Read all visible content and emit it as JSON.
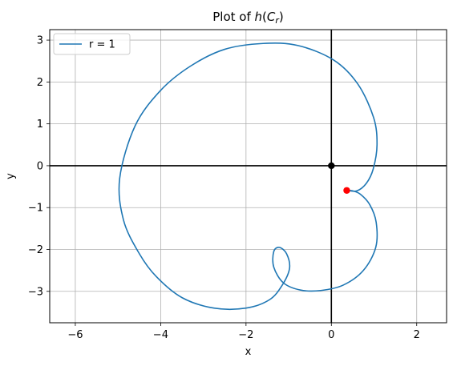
{
  "chart_data": {
    "type": "line",
    "title": "Plot of h(C_r)",
    "title_parts": {
      "prefix": "Plot of ",
      "h": "h",
      "open": "(",
      "C": "C",
      "sub": "r",
      "close": ")"
    },
    "xlabel": "x",
    "ylabel": "y",
    "xlim": [
      -6.6,
      2.7
    ],
    "ylim": [
      -3.75,
      3.25
    ],
    "xticks": [
      -6,
      -4,
      -2,
      0,
      2
    ],
    "yticks": [
      -3,
      -2,
      -1,
      0,
      1,
      2,
      3
    ],
    "xtick_labels": [
      "−6",
      "−4",
      "−2",
      "0",
      "2"
    ],
    "ytick_labels": [
      "−3",
      "−2",
      "−1",
      "0",
      "1",
      "2",
      "3"
    ],
    "grid": true,
    "legend": {
      "placement": "upper-left",
      "entries": [
        "r = 1"
      ]
    },
    "series": [
      {
        "name": "r = 1",
        "color": "#1f77b4",
        "points": [
          [
            0.36,
            -0.59
          ],
          [
            0.6,
            -0.6
          ],
          [
            0.82,
            -0.42
          ],
          [
            0.98,
            -0.08
          ],
          [
            1.07,
            0.5
          ],
          [
            0.99,
            1.15
          ],
          [
            0.62,
            1.95
          ],
          [
            0.06,
            2.52
          ],
          [
            -0.78,
            2.87
          ],
          [
            -1.6,
            2.92
          ],
          [
            -2.5,
            2.78
          ],
          [
            -3.3,
            2.38
          ],
          [
            -4.0,
            1.8
          ],
          [
            -4.6,
            0.95
          ],
          [
            -4.96,
            -0.3
          ],
          [
            -4.87,
            -1.3
          ],
          [
            -4.5,
            -2.1
          ],
          [
            -4.1,
            -2.65
          ],
          [
            -3.5,
            -3.15
          ],
          [
            -2.75,
            -3.4
          ],
          [
            -2.0,
            -3.4
          ],
          [
            -1.45,
            -3.2
          ],
          [
            -1.15,
            -2.85
          ],
          [
            -0.98,
            -2.45
          ],
          [
            -1.05,
            -2.1
          ],
          [
            -1.22,
            -1.95
          ],
          [
            -1.35,
            -2.05
          ],
          [
            -1.35,
            -2.42
          ],
          [
            -1.12,
            -2.8
          ],
          [
            -0.72,
            -2.97
          ],
          [
            -0.25,
            -2.98
          ],
          [
            0.28,
            -2.85
          ],
          [
            0.75,
            -2.5
          ],
          [
            1.04,
            -1.95
          ],
          [
            1.05,
            -1.35
          ],
          [
            0.9,
            -0.93
          ],
          [
            0.68,
            -0.68
          ],
          [
            0.5,
            -0.6
          ],
          [
            0.36,
            -0.59
          ]
        ]
      }
    ],
    "points": [
      {
        "x": 0,
        "y": 0,
        "color": "#000000"
      },
      {
        "x": 0.36,
        "y": -0.59,
        "color": "#ff0000"
      }
    ],
    "axis_lines": {
      "x0": 0,
      "y0": 0,
      "color": "#000000"
    }
  }
}
